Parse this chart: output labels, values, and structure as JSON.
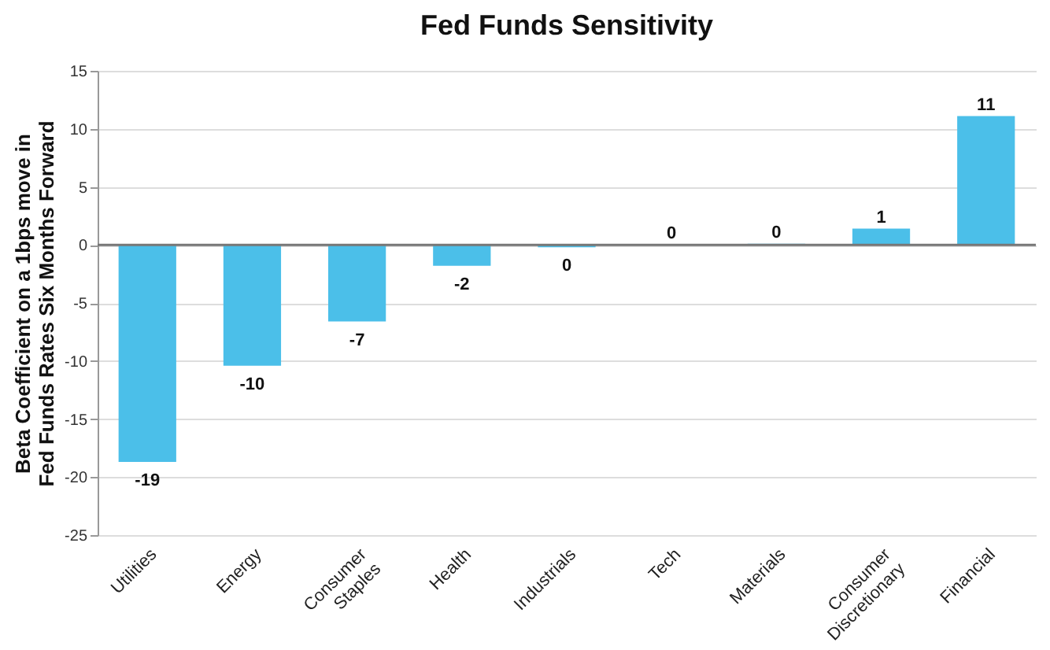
{
  "chart_data": {
    "type": "bar",
    "title": "Fed Funds Sensitivity",
    "ylabel": "Beta Coefficient on a 1bps move in Fed Funds Rates Six Months Forward",
    "categories": [
      "Utilities",
      "Energy",
      "Consumer Staples",
      "Health",
      "Industrials",
      "Tech",
      "Materials",
      "Consumer Discretionary",
      "Financial"
    ],
    "values": [
      -18.7,
      -10.4,
      -6.6,
      -1.8,
      -0.2,
      0.05,
      0.1,
      1.4,
      11.1
    ],
    "value_labels": [
      "-19",
      "-10",
      "-7",
      "-2",
      "0",
      "0",
      "0",
      "1",
      "11"
    ],
    "color": "#4bbfe9",
    "ylim": [
      -25,
      15
    ],
    "yticks": [
      -25,
      -20,
      -15,
      -10,
      -5,
      0,
      5,
      10,
      15
    ],
    "grid": "y",
    "ref_lines": [
      {
        "axis": "y",
        "value": 0,
        "color": "#777777"
      }
    ]
  }
}
